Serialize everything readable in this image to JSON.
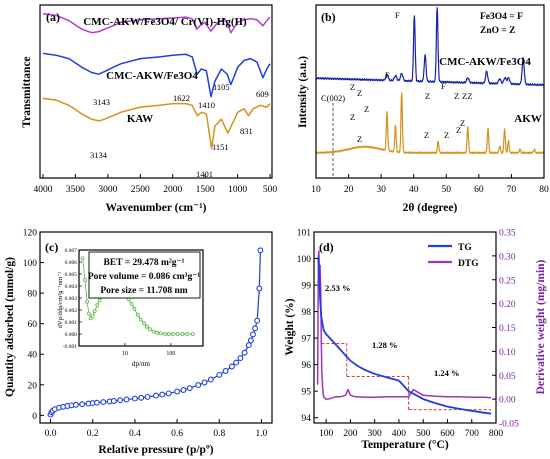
{
  "colors": {
    "purple": "#b43ad6",
    "blue": "#1f3ee0",
    "orange": "#d4911c",
    "navy": "#1424a8",
    "green": "#4fb63d",
    "dtg": "#9a35c2",
    "red_dashed": "#cc2222"
  },
  "chart_data": [
    {
      "panel": "(a)",
      "type": "line",
      "xlabel": "Wavenumber (cm⁻¹)",
      "ylabel": "Transmittance",
      "xlim": [
        4000,
        500
      ],
      "xticks": [
        "4000",
        "3500",
        "3000",
        "2500",
        "2000",
        "1500",
        "1000",
        "500"
      ],
      "series": [
        {
          "name": "CMC-AKW/Fe3O4/ Cr(VI)-Hg(II)",
          "color": "#b43ad6",
          "x": [
            4000,
            3800,
            3600,
            3400,
            3250,
            3150,
            3050,
            2920,
            2800,
            2500,
            2200,
            2000,
            1800,
            1700,
            1630,
            1580,
            1500,
            1450,
            1410,
            1370,
            1300,
            1200,
            1150,
            1105,
            1050,
            1000,
            900,
            800,
            700,
            609,
            550,
            500
          ],
          "y": [
            0.95,
            0.94,
            0.91,
            0.86,
            0.84,
            0.845,
            0.86,
            0.88,
            0.9,
            0.915,
            0.92,
            0.925,
            0.93,
            0.92,
            0.86,
            0.88,
            0.9,
            0.87,
            0.85,
            0.87,
            0.9,
            0.92,
            0.89,
            0.84,
            0.87,
            0.9,
            0.915,
            0.92,
            0.915,
            0.88,
            0.91,
            0.93
          ]
        },
        {
          "name": "CMC-AKW/Fe3O4",
          "color": "#1f3ee0",
          "x": [
            4000,
            3800,
            3600,
            3400,
            3250,
            3143,
            3050,
            2920,
            2800,
            2500,
            2200,
            2000,
            1800,
            1700,
            1622,
            1560,
            1480,
            1410,
            1350,
            1250,
            1160,
            1105,
            1060,
            1000,
            900,
            800,
            700,
            609,
            550,
            500
          ],
          "y": [
            0.72,
            0.71,
            0.69,
            0.64,
            0.61,
            0.6,
            0.615,
            0.64,
            0.66,
            0.69,
            0.7,
            0.71,
            0.715,
            0.7,
            0.6,
            0.63,
            0.62,
            0.47,
            0.56,
            0.63,
            0.6,
            0.54,
            0.58,
            0.64,
            0.68,
            0.69,
            0.67,
            0.58,
            0.63,
            0.66
          ]
        },
        {
          "name": "KAW",
          "color": "#d4911c",
          "x": [
            4000,
            3800,
            3600,
            3400,
            3250,
            3134,
            3050,
            2920,
            2800,
            2500,
            2200,
            2000,
            1800,
            1700,
            1620,
            1560,
            1480,
            1401,
            1350,
            1250,
            1151,
            1060,
            1000,
            900,
            831,
            760,
            650,
            550,
            500
          ],
          "y": [
            0.46,
            0.45,
            0.42,
            0.37,
            0.34,
            0.33,
            0.34,
            0.36,
            0.38,
            0.41,
            0.42,
            0.43,
            0.43,
            0.42,
            0.36,
            0.38,
            0.37,
            0.17,
            0.3,
            0.34,
            0.26,
            0.33,
            0.38,
            0.4,
            0.36,
            0.4,
            0.42,
            0.41,
            0.43
          ]
        }
      ],
      "annotations": [
        "3143",
        "1622",
        "1410",
        "1105",
        "609",
        "3134",
        "1401",
        "1151",
        "831"
      ]
    },
    {
      "panel": "(b)",
      "type": "line",
      "xlabel": "2θ (degree)",
      "ylabel": "Intensity (a.u.)",
      "xlim": [
        10,
        80
      ],
      "xticks": [
        "10",
        "20",
        "30",
        "40",
        "50",
        "60",
        "70",
        "80"
      ],
      "legend_text": [
        "Fe3O4 = F",
        "ZnO = Z"
      ],
      "series": [
        {
          "name": "CMC-AKW/Fe3O4",
          "color": "#1424a8",
          "peaks": [
            [
              31.8,
              0.05,
              0.5
            ],
            [
              34.4,
              0.04,
              0.5
            ],
            [
              36.3,
              0.06,
              0.5
            ],
            [
              40.2,
              0.55,
              0.35
            ],
            [
              43.5,
              0.22,
              0.4
            ],
            [
              47.2,
              0.62,
              0.35
            ],
            [
              56.6,
              0.04,
              0.5
            ],
            [
              62.4,
              0.1,
              0.45
            ],
            [
              66.4,
              0.04,
              0.5
            ],
            [
              68.0,
              0.05,
              0.5
            ],
            [
              69.1,
              0.05,
              0.5
            ],
            [
              73.6,
              0.22,
              0.45
            ]
          ]
        },
        {
          "name": "AKW",
          "color": "#d4911c",
          "peaks": [
            [
              31.8,
              0.32,
              0.3
            ],
            [
              34.4,
              0.22,
              0.3
            ],
            [
              36.3,
              0.5,
              0.3
            ],
            [
              47.5,
              0.1,
              0.3
            ],
            [
              56.6,
              0.22,
              0.3
            ],
            [
              62.8,
              0.21,
              0.3
            ],
            [
              66.4,
              0.06,
              0.3
            ],
            [
              67.9,
              0.2,
              0.3
            ],
            [
              69.1,
              0.1,
              0.3
            ],
            [
              72.6,
              0.03,
              0.3
            ],
            [
              77.0,
              0.03,
              0.3
            ]
          ]
        }
      ],
      "annotations": [
        "C(002)",
        "Z",
        "Z",
        "F",
        "F",
        "Z",
        "F",
        "Z",
        "ZZ",
        "Z",
        "Z",
        "Z",
        "Z",
        "Z",
        "Z",
        "Z"
      ]
    },
    {
      "panel": "(c)",
      "type": "scatter",
      "xlabel": "Relative pressure (p/pº)",
      "ylabel": "Quantity adsorbed (mmol/g)",
      "xlim": [
        -0.05,
        1.05
      ],
      "ylim": [
        -5,
        120
      ],
      "xticks": [
        "0.0",
        "0.2",
        "0.4",
        "0.6",
        "0.8",
        "1.0"
      ],
      "yticks": [
        "0",
        "20",
        "40",
        "60",
        "80",
        "100",
        "120"
      ],
      "box_text": [
        "BET = 29.478 m²g⁻¹",
        "Pore volume = 0.086 cm³g⁻¹",
        "Pore size = 11.708 nm"
      ],
      "series": [
        {
          "name": "adsorption",
          "color": "#1f3ee0",
          "x": [
            0.0,
            0.005,
            0.01,
            0.02,
            0.04,
            0.06,
            0.08,
            0.1,
            0.12,
            0.15,
            0.18,
            0.2,
            0.22,
            0.25,
            0.28,
            0.3,
            0.33,
            0.36,
            0.4,
            0.43,
            0.46,
            0.5,
            0.53,
            0.56,
            0.6,
            0.63,
            0.66,
            0.7,
            0.73,
            0.76,
            0.8,
            0.83,
            0.86,
            0.88,
            0.9,
            0.92,
            0.94,
            0.95,
            0.96,
            0.97,
            0.98,
            0.99,
            0.995
          ],
          "y": [
            0.5,
            2.0,
            3.0,
            4.0,
            5.0,
            5.6,
            6.1,
            6.5,
            6.9,
            7.3,
            7.7,
            8.0,
            8.3,
            8.7,
            9.1,
            9.4,
            9.9,
            10.4,
            11.0,
            11.5,
            12.1,
            12.9,
            13.6,
            14.4,
            15.6,
            16.6,
            17.8,
            19.8,
            21.5,
            23.5,
            26.5,
            29.0,
            32.0,
            34.5,
            37.5,
            41.0,
            46.0,
            49.0,
            53.0,
            57.0,
            62.0,
            83.0,
            108.0
          ]
        }
      ],
      "inset": {
        "type": "scatter",
        "xlabel": "dp/nm",
        "ylabel": "dVp/ddp/cm³g⁻¹nm⁻¹",
        "x_scale": "log",
        "xlim": [
          1,
          500
        ],
        "ylim": [
          -0.001,
          0.007
        ],
        "yticks": [
          "-0.001",
          "0.000",
          "0.001",
          "0.002",
          "0.003",
          "0.004",
          "0.005",
          "0.006",
          "0.007"
        ],
        "xticks": [
          "10",
          "100"
        ],
        "series": [
          {
            "name": "pore size distribution",
            "color": "#4fb63d",
            "x": [
              1.2,
              1.35,
              1.5,
              1.65,
              1.8,
              2.0,
              2.2,
              2.5,
              2.8,
              3.1,
              3.5,
              4.0,
              4.5,
              5.0,
              5.6,
              6.3,
              7.1,
              8.0,
              9.0,
              10,
              12,
              14,
              16,
              19,
              22,
              26,
              30,
              35,
              42,
              50,
              60,
              75,
              90,
              110,
              140,
              180,
              230,
              300
            ],
            "y": [
              0.0063,
              0.0045,
              0.0027,
              0.0017,
              0.0013,
              0.0015,
              0.0019,
              0.0024,
              0.0028,
              0.0031,
              0.0033,
              0.0035,
              0.0036,
              0.0036,
              0.0036,
              0.0035,
              0.0035,
              0.0034,
              0.0033,
              0.0032,
              0.0029,
              0.0025,
              0.0021,
              0.0016,
              0.0012,
              0.0009,
              0.0006,
              0.0004,
              0.0002,
              0.0001,
              5e-05,
              0.0,
              0.0,
              0.0,
              0.0,
              0.0,
              0.0,
              0.0
            ]
          }
        ]
      }
    },
    {
      "panel": "(d)",
      "type": "line",
      "xlabel": "Temperature (°C)",
      "ylabel": "Weight (%)",
      "y2label": "Derivative weight (mg/min)",
      "xlim": [
        50,
        800
      ],
      "ylim": [
        93.8,
        101
      ],
      "y2lim": [
        -0.05,
        0.35
      ],
      "xticks": [
        "100",
        "200",
        "300",
        "400",
        "500",
        "600",
        "700",
        "800"
      ],
      "yticks": [
        "94",
        "95",
        "96",
        "97",
        "98",
        "99",
        "100",
        "101"
      ],
      "y2ticks": [
        "-0.05",
        "0.00",
        "0.05",
        "0.10",
        "0.15",
        "0.20",
        "0.25",
        "0.30",
        "0.35"
      ],
      "legend": [
        "TG",
        "DTG"
      ],
      "series": [
        {
          "name": "TG",
          "axis": "left",
          "color": "#1f3ee0",
          "x": [
            68,
            70,
            75,
            80,
            90,
            100,
            120,
            150,
            180,
            200,
            230,
            260,
            300,
            350,
            400,
            420,
            440,
            470,
            500,
            550,
            600,
            650,
            700,
            750,
            780
          ],
          "y": [
            100.05,
            99.6,
            98.5,
            97.8,
            97.3,
            97.15,
            96.95,
            96.65,
            96.35,
            96.15,
            95.95,
            95.8,
            95.65,
            95.52,
            95.4,
            95.2,
            95.0,
            94.85,
            94.7,
            94.55,
            94.42,
            94.33,
            94.26,
            94.19,
            94.15
          ]
        },
        {
          "name": "DTG",
          "axis": "right",
          "color": "#9a35c2",
          "x": [
            65,
            68,
            70,
            72,
            75,
            78,
            80,
            82,
            85,
            88,
            90,
            95,
            100,
            110,
            120,
            140,
            160,
            180,
            190,
            200,
            220,
            260,
            300,
            350,
            400,
            440,
            460,
            500,
            550,
            600,
            650,
            700,
            750,
            780
          ],
          "y": [
            0.03,
            0.3,
            0.31,
            0.27,
            0.28,
            0.22,
            0.12,
            0.06,
            0.03,
            0.01,
            0.005,
            0.002,
            0.0,
            0.0,
            0.002,
            0.005,
            0.005,
            0.008,
            0.02,
            0.008,
            0.005,
            0.004,
            0.004,
            0.005,
            0.005,
            0.005,
            0.02,
            0.008,
            0.006,
            0.005,
            0.005,
            0.004,
            0.004,
            0.003
          ]
        }
      ],
      "annotations": [
        "2.53 %",
        "1.28 %",
        "1.24 %"
      ]
    }
  ]
}
